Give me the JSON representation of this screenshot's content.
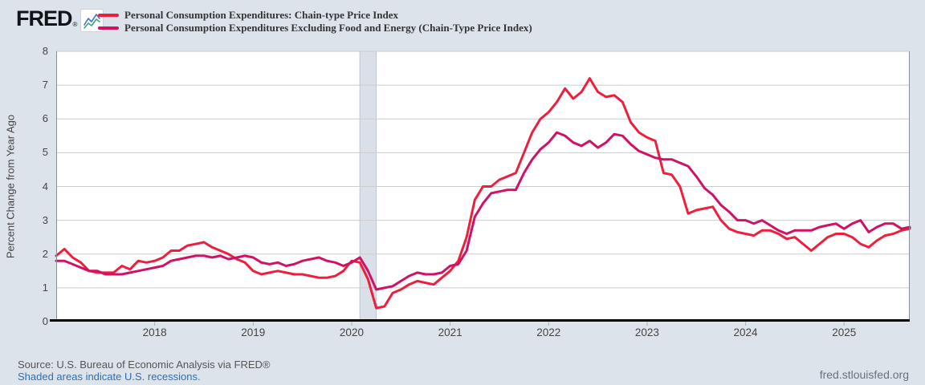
{
  "header": {
    "logo_text": "FRED",
    "registered_mark": "®"
  },
  "footer": {
    "source_line": "Source: U.S. Bureau of Economic Analysis via FRED®",
    "recession_note": "Shaded areas indicate U.S. recessions.",
    "site_link": "fred.stlouisfed.org"
  },
  "colors": {
    "background": "#dde3eb",
    "plot_background": "#ffffff",
    "gridline": "#cccccc",
    "axis": "#000000",
    "recession_band": "#dae0e8",
    "recession_band_edge": "#bfc5cf",
    "link_blue": "#2f6eb3",
    "tick_text": "#444444"
  },
  "chart_data": {
    "type": "line",
    "title": "",
    "xlabel": "",
    "ylabel": "Percent Change from Year Ago",
    "ylim": [
      0,
      8
    ],
    "yticks": [
      0,
      1,
      2,
      3,
      4,
      5,
      6,
      7,
      8
    ],
    "xticks": [
      2018,
      2019,
      2020,
      2021,
      2022,
      2023,
      2024,
      2025
    ],
    "xlim_decimal_years": [
      2017.0,
      2025.6667
    ],
    "grid": true,
    "legend_position": "top-left",
    "frequency": "monthly",
    "x_start": "2017-01",
    "x_end": "2025-09",
    "recession_bands": [
      {
        "label": "COVID-19 recession",
        "start": "2020-02",
        "end": "2020-04",
        "start_decimal": 2020.0833,
        "end_decimal": 2020.25
      }
    ],
    "series": [
      {
        "name": "Personal Consumption Expenditures: Chain-type Price Index",
        "color": "#ee1f3d",
        "values": [
          1.95,
          2.15,
          1.9,
          1.75,
          1.5,
          1.45,
          1.45,
          1.45,
          1.65,
          1.55,
          1.8,
          1.75,
          1.8,
          1.9,
          2.1,
          2.1,
          2.25,
          2.3,
          2.35,
          2.2,
          2.1,
          2.0,
          1.85,
          1.75,
          1.5,
          1.4,
          1.45,
          1.5,
          1.45,
          1.4,
          1.4,
          1.35,
          1.3,
          1.3,
          1.35,
          1.5,
          1.8,
          1.75,
          1.25,
          0.4,
          0.45,
          0.85,
          0.95,
          1.1,
          1.2,
          1.15,
          1.1,
          1.3,
          1.5,
          1.8,
          2.5,
          3.6,
          4.0,
          4.0,
          4.2,
          4.3,
          4.4,
          5.0,
          5.6,
          6.0,
          6.2,
          6.5,
          6.9,
          6.6,
          6.8,
          7.2,
          6.8,
          6.65,
          6.7,
          6.5,
          5.9,
          5.6,
          5.45,
          5.35,
          4.4,
          4.35,
          4.0,
          3.2,
          3.3,
          3.35,
          3.4,
          3.0,
          2.75,
          2.65,
          2.6,
          2.55,
          2.7,
          2.7,
          2.6,
          2.45,
          2.5,
          2.3,
          2.1,
          2.3,
          2.5,
          2.6,
          2.6,
          2.5,
          2.3,
          2.2,
          2.4,
          2.55,
          2.6,
          2.7,
          2.75
        ]
      },
      {
        "name": "Personal Consumption Expenditures Excluding Food and Energy (Chain-Type Price Index)",
        "color": "#d01265",
        "values": [
          1.8,
          1.8,
          1.7,
          1.6,
          1.5,
          1.5,
          1.4,
          1.4,
          1.4,
          1.45,
          1.5,
          1.55,
          1.6,
          1.65,
          1.8,
          1.85,
          1.9,
          1.95,
          1.95,
          1.9,
          1.95,
          1.85,
          1.9,
          1.95,
          1.9,
          1.75,
          1.7,
          1.75,
          1.65,
          1.7,
          1.8,
          1.85,
          1.9,
          1.8,
          1.75,
          1.65,
          1.75,
          1.9,
          1.5,
          0.95,
          1.0,
          1.05,
          1.2,
          1.35,
          1.45,
          1.4,
          1.4,
          1.45,
          1.65,
          1.7,
          2.1,
          3.1,
          3.5,
          3.8,
          3.85,
          3.9,
          3.9,
          4.4,
          4.8,
          5.1,
          5.3,
          5.6,
          5.5,
          5.3,
          5.2,
          5.35,
          5.15,
          5.3,
          5.55,
          5.5,
          5.25,
          5.05,
          4.95,
          4.85,
          4.8,
          4.8,
          4.7,
          4.6,
          4.3,
          3.95,
          3.75,
          3.45,
          3.25,
          3.0,
          3.0,
          2.9,
          3.0,
          2.85,
          2.7,
          2.6,
          2.7,
          2.7,
          2.7,
          2.8,
          2.85,
          2.9,
          2.75,
          2.9,
          3.0,
          2.65,
          2.8,
          2.9,
          2.9,
          2.75,
          2.8
        ]
      }
    ]
  }
}
